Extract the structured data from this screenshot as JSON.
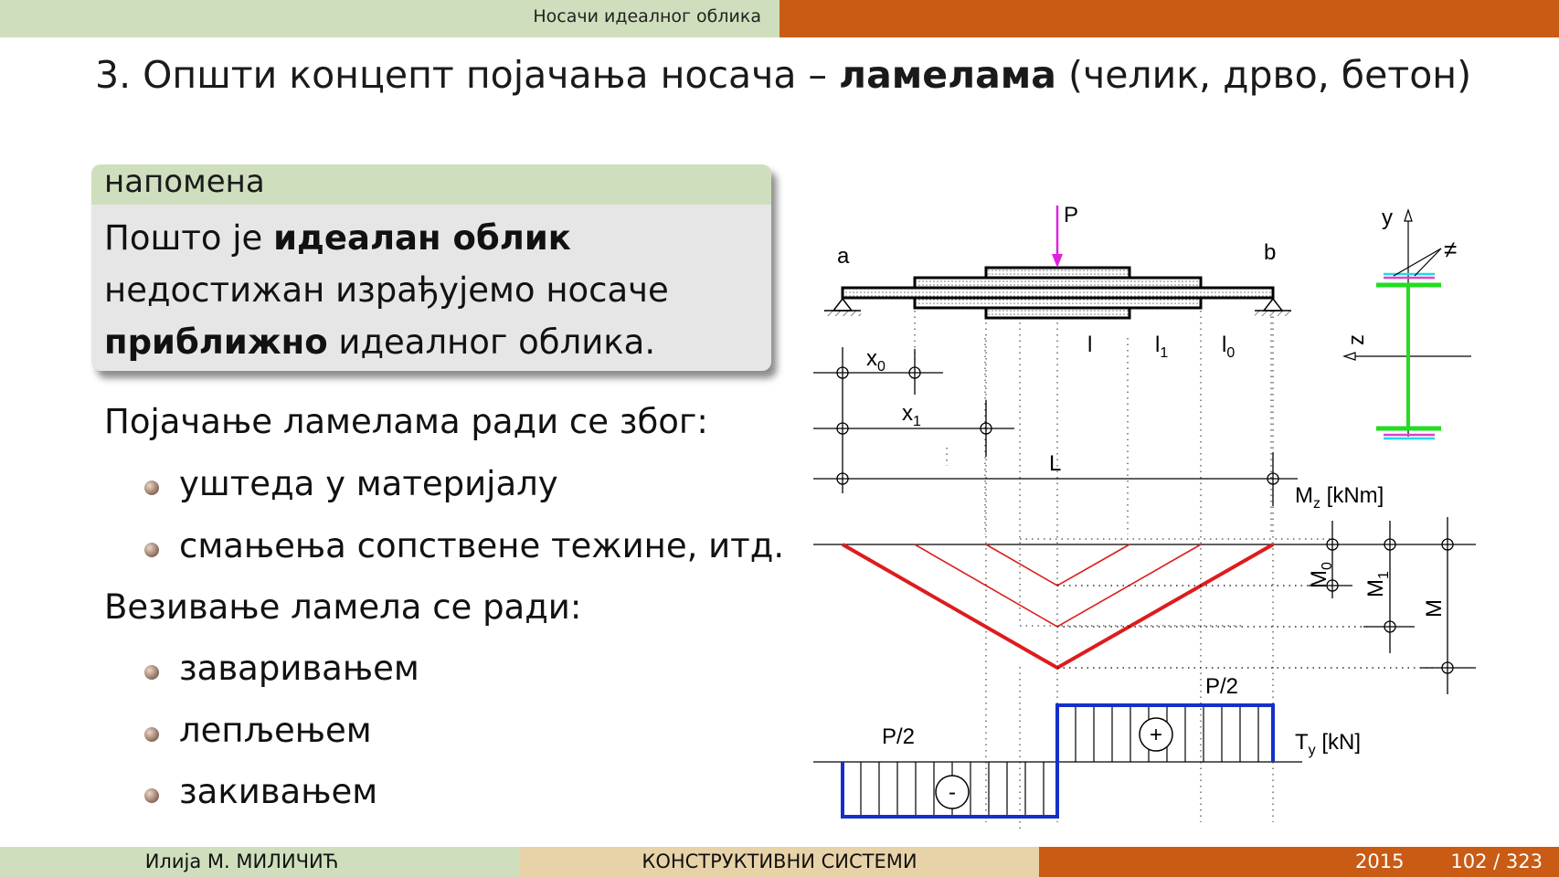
{
  "header": {
    "section": "Носачи идеалног облика"
  },
  "title": {
    "prefix": "3. Општи концепт појачања носача – ",
    "bold": "ламелама",
    "suffix": " (челик, дрво, бетон)"
  },
  "note": {
    "heading": "напомена",
    "line1_a": "Пошто је ",
    "line1_b": "идеалан облик",
    "line2": "недостижан израђујемо носаче",
    "line3_a": "приближно",
    "line3_b": " идеалног облика."
  },
  "reasons": {
    "heading": "Појачање ламелама ради се због:",
    "items": [
      "уштеда у материјалу",
      "смањења сопствене тежине, итд."
    ]
  },
  "joining": {
    "heading": "Везивање ламела се ради:",
    "items": [
      "заваривањем",
      "лепљењем",
      "закивањем"
    ]
  },
  "diagram": {
    "P": "P",
    "a": "a",
    "b": "b",
    "l": "l",
    "l1": "l",
    "l1_sub": "1",
    "l0": "l",
    "l0_sub": "0",
    "x0": "x",
    "x0_sub": "0",
    "x1": "x",
    "x1_sub": "1",
    "L": "L",
    "y": "y",
    "z": "z",
    "neq": "≠",
    "Mz": "M",
    "Mz_sub": "z",
    "Mz_unit": " [kNm]",
    "M0": "M",
    "M0_sub": "0",
    "M1": "M",
    "M1_sub": "1",
    "M": "M",
    "half_left": "P/2",
    "half_right": "P/2",
    "plus": "+",
    "minus": "-",
    "Ty": "T",
    "Ty_sub": "y",
    "Ty_unit": " [kN]",
    "colors": {
      "load": "#e020e0",
      "moment": "#dd1c1c",
      "shear": "#1530c8",
      "section": "#22dd22",
      "flange_a": "#20d8e8",
      "flange_b": "#e040d0"
    }
  },
  "footer": {
    "author": "Илија М. МИЛИЧИЋ",
    "course": "КОНСТРУКТИВНИ СИСТЕМИ",
    "year": "2015",
    "page": "102 / 323"
  }
}
